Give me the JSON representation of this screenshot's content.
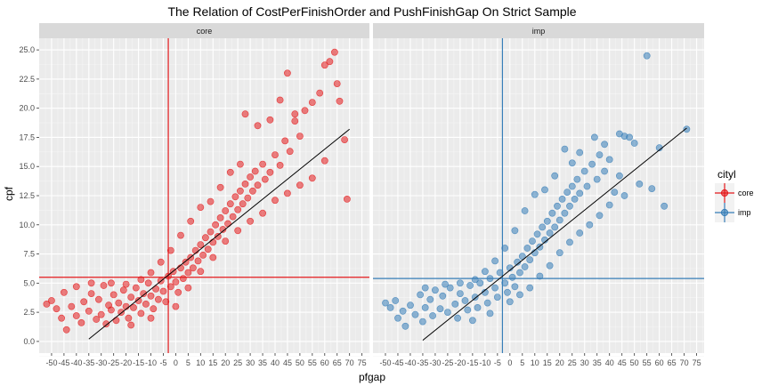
{
  "chart_data": {
    "type": "scatter",
    "title": "The Relation of CostPerFinishOrder and PushFinishGap On Strict Sample",
    "xlabel": "pfgap",
    "ylabel": "cpf",
    "xlim": [
      -55,
      78
    ],
    "ylim": [
      -1,
      26
    ],
    "x_ticks": [
      -50,
      -45,
      -40,
      -35,
      -30,
      -25,
      -20,
      -15,
      -10,
      -5,
      0,
      5,
      10,
      15,
      20,
      25,
      30,
      35,
      40,
      45,
      50,
      55,
      60,
      65,
      70,
      75
    ],
    "y_ticks": [
      0.0,
      2.5,
      5.0,
      7.5,
      10.0,
      12.5,
      15.0,
      17.5,
      20.0,
      22.5,
      25.0
    ],
    "y_tick_labels": [
      "0.0",
      "2.5",
      "5.0",
      "7.5",
      "10.0",
      "12.5",
      "15.0",
      "17.5",
      "20.0",
      "22.5",
      "25.0"
    ],
    "grid": true,
    "legend": {
      "title": "cityl",
      "position": "right",
      "items": [
        {
          "label": "core",
          "color": "#e41a1c"
        },
        {
          "label": "imp",
          "color": "#377eb8"
        }
      ]
    },
    "panels": [
      {
        "strip": "core",
        "color": "#e41a1c",
        "vline_x": -3,
        "hline_y": 5.5,
        "fit": {
          "x0": -35,
          "y0": 0.2,
          "x1": 70,
          "y1": 18.2
        },
        "points": [
          [
            -52,
            3.2
          ],
          [
            -50,
            3.5
          ],
          [
            -48,
            2.8
          ],
          [
            -46,
            2.0
          ],
          [
            -45,
            4.2
          ],
          [
            -44,
            1.0
          ],
          [
            -42,
            3.0
          ],
          [
            -40,
            2.2
          ],
          [
            -40,
            4.7
          ],
          [
            -38,
            1.6
          ],
          [
            -37,
            3.4
          ],
          [
            -35,
            2.6
          ],
          [
            -34,
            4.1
          ],
          [
            -32,
            1.9
          ],
          [
            -31,
            3.6
          ],
          [
            -30,
            2.3
          ],
          [
            -29,
            4.8
          ],
          [
            -28,
            1.5
          ],
          [
            -27,
            3.1
          ],
          [
            -26,
            2.7
          ],
          [
            -25,
            4.0
          ],
          [
            -24,
            1.8
          ],
          [
            -23,
            3.3
          ],
          [
            -22,
            2.5
          ],
          [
            -21,
            4.4
          ],
          [
            -20,
            3.0
          ],
          [
            -19,
            2.0
          ],
          [
            -18,
            3.8
          ],
          [
            -17,
            2.9
          ],
          [
            -16,
            4.6
          ],
          [
            -15,
            3.5
          ],
          [
            -14,
            2.4
          ],
          [
            -13,
            4.1
          ],
          [
            -12,
            3.2
          ],
          [
            -11,
            5.0
          ],
          [
            -10,
            3.9
          ],
          [
            -9,
            2.8
          ],
          [
            -8,
            4.5
          ],
          [
            -7,
            3.6
          ],
          [
            -6,
            5.2
          ],
          [
            -5,
            4.3
          ],
          [
            -4,
            3.4
          ],
          [
            -3,
            5.6
          ],
          [
            -2,
            4.7
          ],
          [
            -1,
            6.0
          ],
          [
            0,
            5.1
          ],
          [
            1,
            4.2
          ],
          [
            2,
            6.3
          ],
          [
            3,
            5.4
          ],
          [
            4,
            6.8
          ],
          [
            5,
            5.9
          ],
          [
            6,
            7.2
          ],
          [
            7,
            6.3
          ],
          [
            8,
            7.8
          ],
          [
            9,
            6.9
          ],
          [
            10,
            8.3
          ],
          [
            11,
            7.4
          ],
          [
            12,
            8.9
          ],
          [
            13,
            7.9
          ],
          [
            14,
            9.4
          ],
          [
            15,
            8.5
          ],
          [
            16,
            10.0
          ],
          [
            17,
            9.0
          ],
          [
            18,
            10.6
          ],
          [
            19,
            9.6
          ],
          [
            20,
            11.2
          ],
          [
            21,
            10.1
          ],
          [
            22,
            11.8
          ],
          [
            23,
            10.7
          ],
          [
            24,
            12.4
          ],
          [
            25,
            11.3
          ],
          [
            26,
            12.9
          ],
          [
            27,
            11.8
          ],
          [
            28,
            13.5
          ],
          [
            29,
            12.3
          ],
          [
            30,
            14.1
          ],
          [
            31,
            12.9
          ],
          [
            32,
            14.6
          ],
          [
            33,
            13.4
          ],
          [
            35,
            15.2
          ],
          [
            36,
            13.9
          ],
          [
            38,
            14.5
          ],
          [
            40,
            16.0
          ],
          [
            42,
            15.1
          ],
          [
            44,
            17.2
          ],
          [
            46,
            16.3
          ],
          [
            48,
            18.9
          ],
          [
            50,
            17.6
          ],
          [
            52,
            19.8
          ],
          [
            55,
            20.5
          ],
          [
            58,
            21.3
          ],
          [
            60,
            23.7
          ],
          [
            62,
            24.0
          ],
          [
            64,
            24.8
          ],
          [
            65,
            22.1
          ],
          [
            66,
            20.6
          ],
          [
            68,
            17.3
          ],
          [
            69,
            12.2
          ],
          [
            -18,
            1.4
          ],
          [
            -10,
            2.0
          ],
          [
            0,
            3.0
          ],
          [
            5,
            4.6
          ],
          [
            10,
            6.0
          ],
          [
            15,
            7.2
          ],
          [
            20,
            8.6
          ],
          [
            25,
            9.5
          ],
          [
            30,
            10.3
          ],
          [
            35,
            11.0
          ],
          [
            40,
            12.1
          ],
          [
            45,
            12.7
          ],
          [
            50,
            13.4
          ],
          [
            55,
            14.0
          ],
          [
            60,
            15.5
          ],
          [
            28,
            19.5
          ],
          [
            33,
            18.5
          ],
          [
            38,
            19.0
          ],
          [
            42,
            20.7
          ],
          [
            48,
            19.5
          ],
          [
            45,
            23.0
          ],
          [
            26,
            15.2
          ],
          [
            22,
            14.5
          ],
          [
            18,
            13.2
          ],
          [
            14,
            12.0
          ],
          [
            10,
            11.5
          ],
          [
            6,
            10.3
          ],
          [
            2,
            9.1
          ],
          [
            -2,
            7.8
          ],
          [
            -6,
            6.8
          ],
          [
            -10,
            5.9
          ],
          [
            -14,
            5.3
          ],
          [
            -20,
            4.9
          ],
          [
            -26,
            5.0
          ],
          [
            -34,
            5.0
          ]
        ]
      },
      {
        "strip": "imp",
        "color": "#377eb8",
        "vline_x": -3,
        "hline_y": 5.4,
        "fit": {
          "x0": -35,
          "y0": 0.1,
          "x1": 71,
          "y1": 18.3
        },
        "points": [
          [
            -50,
            3.3
          ],
          [
            -48,
            2.9
          ],
          [
            -46,
            3.5
          ],
          [
            -45,
            2.0
          ],
          [
            -43,
            2.6
          ],
          [
            -42,
            1.3
          ],
          [
            -40,
            3.1
          ],
          [
            -38,
            2.3
          ],
          [
            -36,
            4.0
          ],
          [
            -35,
            1.7
          ],
          [
            -34,
            2.9
          ],
          [
            -32,
            3.6
          ],
          [
            -31,
            2.2
          ],
          [
            -30,
            4.4
          ],
          [
            -28,
            2.8
          ],
          [
            -27,
            3.9
          ],
          [
            -25,
            2.5
          ],
          [
            -24,
            4.6
          ],
          [
            -22,
            3.2
          ],
          [
            -21,
            2.0
          ],
          [
            -20,
            4.1
          ],
          [
            -18,
            3.5
          ],
          [
            -17,
            2.7
          ],
          [
            -16,
            4.8
          ],
          [
            -14,
            3.8
          ],
          [
            -13,
            2.9
          ],
          [
            -12,
            5.0
          ],
          [
            -10,
            4.2
          ],
          [
            -9,
            3.3
          ],
          [
            -8,
            5.4
          ],
          [
            -6,
            4.6
          ],
          [
            -5,
            3.8
          ],
          [
            -4,
            5.9
          ],
          [
            -2,
            5.0
          ],
          [
            -1,
            4.2
          ],
          [
            0,
            6.3
          ],
          [
            1,
            5.5
          ],
          [
            2,
            4.7
          ],
          [
            3,
            6.8
          ],
          [
            4,
            5.9
          ],
          [
            5,
            7.3
          ],
          [
            6,
            6.4
          ],
          [
            7,
            8.0
          ],
          [
            8,
            7.0
          ],
          [
            9,
            8.6
          ],
          [
            10,
            7.6
          ],
          [
            11,
            9.2
          ],
          [
            12,
            8.1
          ],
          [
            13,
            9.8
          ],
          [
            14,
            8.7
          ],
          [
            15,
            10.3
          ],
          [
            16,
            9.3
          ],
          [
            17,
            11.0
          ],
          [
            18,
            9.8
          ],
          [
            19,
            11.6
          ],
          [
            20,
            10.4
          ],
          [
            21,
            12.2
          ],
          [
            22,
            11.0
          ],
          [
            23,
            12.8
          ],
          [
            24,
            11.6
          ],
          [
            25,
            13.3
          ],
          [
            26,
            12.2
          ],
          [
            27,
            13.9
          ],
          [
            28,
            12.7
          ],
          [
            30,
            14.6
          ],
          [
            31,
            13.3
          ],
          [
            33,
            15.2
          ],
          [
            35,
            13.9
          ],
          [
            36,
            16.0
          ],
          [
            38,
            14.6
          ],
          [
            40,
            15.6
          ],
          [
            42,
            12.8
          ],
          [
            44,
            14.2
          ],
          [
            46,
            12.5
          ],
          [
            48,
            17.5
          ],
          [
            50,
            17.0
          ],
          [
            52,
            13.5
          ],
          [
            55,
            24.5
          ],
          [
            57,
            13.1
          ],
          [
            60,
            16.6
          ],
          [
            62,
            11.6
          ],
          [
            71,
            18.2
          ],
          [
            22,
            16.5
          ],
          [
            25,
            15.3
          ],
          [
            28,
            16.2
          ],
          [
            18,
            14.2
          ],
          [
            14,
            13.0
          ],
          [
            10,
            12.6
          ],
          [
            6,
            11.2
          ],
          [
            2,
            9.5
          ],
          [
            -2,
            8.0
          ],
          [
            -6,
            6.9
          ],
          [
            -10,
            6.0
          ],
          [
            -14,
            5.3
          ],
          [
            -20,
            5.0
          ],
          [
            -26,
            4.9
          ],
          [
            -34,
            4.6
          ],
          [
            8,
            4.6
          ],
          [
            12,
            5.6
          ],
          [
            16,
            6.5
          ],
          [
            20,
            7.6
          ],
          [
            24,
            8.5
          ],
          [
            28,
            9.3
          ],
          [
            32,
            10.0
          ],
          [
            36,
            10.8
          ],
          [
            40,
            11.7
          ],
          [
            -15,
            1.8
          ],
          [
            -8,
            2.4
          ],
          [
            0,
            3.4
          ],
          [
            4,
            4.0
          ],
          [
            44,
            17.8
          ],
          [
            46,
            17.6
          ],
          [
            34,
            17.5
          ],
          [
            38,
            16.9
          ]
        ]
      }
    ]
  }
}
